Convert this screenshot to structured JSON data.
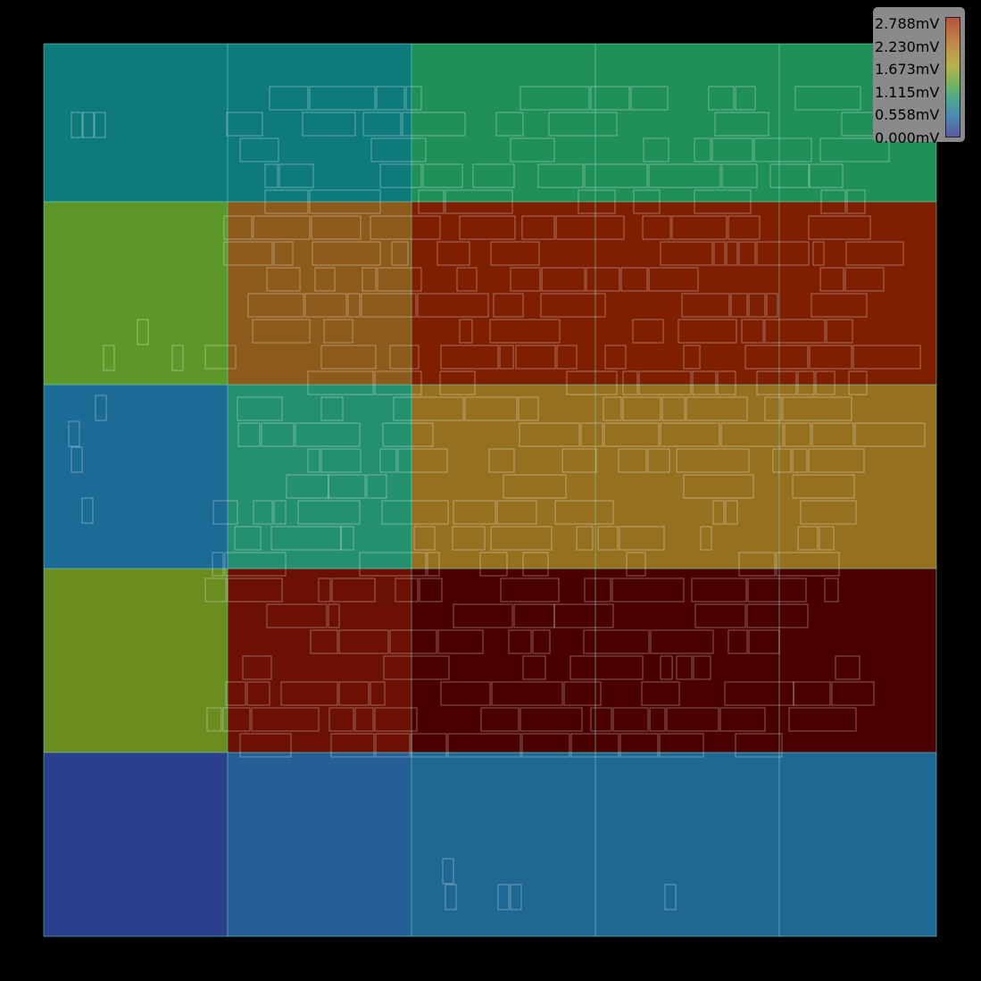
{
  "chart_data": {
    "type": "heatmap",
    "title": "",
    "unit": "mV",
    "grid": true,
    "grid_rows": 5,
    "grid_cols": 5,
    "color_range": [
      0.0,
      2.788
    ],
    "cell_colors": [
      [
        "#0f7a7c",
        "#0f7a7c",
        "#209058",
        "#209058",
        "#209058"
      ],
      [
        "#5e9729",
        "#8c5a1b",
        "#7e1f02",
        "#7e1f02",
        "#7e1f02"
      ],
      [
        "#1c6a96",
        "#249070",
        "#95701f",
        "#95701f",
        "#95701f"
      ],
      [
        "#6b8c1f",
        "#6b1003",
        "#4a0000",
        "#4a0000",
        "#4a0000"
      ],
      [
        "#2b3f8c",
        "#255f96",
        "#1e6893",
        "#1e6893",
        "#1e6893"
      ]
    ],
    "legend": {
      "position": "top-right",
      "ticks": [
        "2.788mV",
        "2.230mV",
        "1.673mV",
        "1.115mV",
        "0.558mV",
        "0.000mV"
      ]
    }
  }
}
